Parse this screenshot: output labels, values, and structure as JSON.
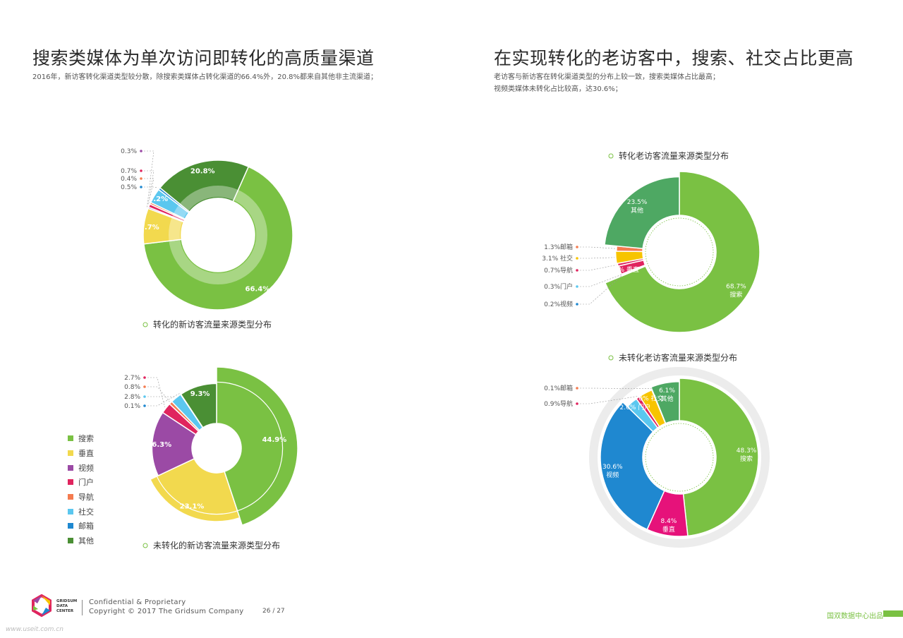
{
  "left": {
    "title": "搜索类媒体为单次访问即转化的高质量渠道",
    "subtitle": "2016年，新访客转化渠道类型较分散，除搜索类媒体占转化渠道的66.4%外，20.8%都来自其他非主流渠道；"
  },
  "right": {
    "title": "在实现转化的老访客中，搜索、社交占比更高",
    "subtitle_lines": [
      "老访客与新访客在转化渠道类型的分布上较一致，搜索类媒体占比最高；",
      "视频类媒体未转化占比较高，达30.6%；"
    ]
  },
  "legend": [
    {
      "label": "搜索",
      "color": "#7ac143"
    },
    {
      "label": "垂直",
      "color": "#f2d94e"
    },
    {
      "label": "视频",
      "color": "#9b4aa5"
    },
    {
      "label": "门户",
      "color": "#e0245e"
    },
    {
      "label": "导航",
      "color": "#f47b4f"
    },
    {
      "label": "社交",
      "color": "#5bc7ef"
    },
    {
      "label": "邮箱",
      "color": "#1f88d0"
    },
    {
      "label": "其他",
      "color": "#4a8f34"
    }
  ],
  "chart_data": [
    {
      "type": "pie",
      "title": "转化的新访客流量来源类型分布",
      "slices": [
        {
          "label": "搜索",
          "value": 66.4,
          "text": "66.4%",
          "color": "#7ac143"
        },
        {
          "label": "垂直",
          "value": 7.7,
          "text": "7.7%",
          "color": "#f2d94e"
        },
        {
          "label": "视频",
          "value": 0.3,
          "text": "0.3%",
          "color": "#9b4aa5"
        },
        {
          "label": "门户",
          "value": 0.7,
          "text": "0.7%",
          "color": "#e0245e"
        },
        {
          "label": "导航",
          "value": 0.4,
          "text": "0.4%",
          "color": "#f47b4f"
        },
        {
          "label": "社交",
          "value": 3.2,
          "text": "3.2%",
          "color": "#5bc7ef"
        },
        {
          "label": "邮箱",
          "value": 0.5,
          "text": "0.5%",
          "color": "#1f88d0"
        },
        {
          "label": "其他",
          "value": 20.8,
          "text": "20.8%",
          "color": "#4a8f34"
        }
      ]
    },
    {
      "type": "pie",
      "title": "未转化的新访客流量来源类型分布",
      "slices": [
        {
          "label": "搜索",
          "value": 44.9,
          "text": "44.9%",
          "color": "#7ac143"
        },
        {
          "label": "垂直",
          "value": 23.1,
          "text": "23.1%",
          "color": "#f2d94e"
        },
        {
          "label": "视频",
          "value": 16.3,
          "text": "16.3%",
          "color": "#9b4aa5"
        },
        {
          "label": "门户",
          "value": 2.7,
          "text": "2.7%",
          "color": "#e0245e"
        },
        {
          "label": "导航",
          "value": 0.8,
          "text": "0.8%",
          "color": "#f47b4f"
        },
        {
          "label": "社交",
          "value": 2.8,
          "text": "2.8%",
          "color": "#5bc7ef"
        },
        {
          "label": "邮箱",
          "value": 0.1,
          "text": "0.1%",
          "color": "#1f88d0"
        },
        {
          "label": "其他",
          "value": 9.3,
          "text": "9.3%",
          "color": "#4a8f34"
        }
      ]
    },
    {
      "type": "pie",
      "title": "转化老访客流量来源类型分布",
      "slices": [
        {
          "label": "搜索",
          "value": 68.7,
          "text": "68.7%",
          "color": "#7ac143"
        },
        {
          "label": "视频",
          "value": 0.2,
          "text": "0.2%视频",
          "color": "#1f88d0"
        },
        {
          "label": "门户",
          "value": 0.3,
          "text": "0.3%门户",
          "color": "#5bc7ef"
        },
        {
          "label": "垂直",
          "value": 2.2,
          "text": "2.2% 垂直",
          "color": "#e0245e"
        },
        {
          "label": "导航",
          "value": 0.7,
          "text": "0.7%导航",
          "color": "#e0245e"
        },
        {
          "label": "社交",
          "value": 3.1,
          "text": "3.1% 社交",
          "color": "#f7c400"
        },
        {
          "label": "邮箱",
          "value": 1.3,
          "text": "1.3%邮箱",
          "color": "#f47b4f"
        },
        {
          "label": "其他",
          "value": 23.5,
          "text": "23.5%",
          "color": "#4ea863"
        }
      ]
    },
    {
      "type": "pie",
      "title": "未转化老访客流量来源类型分布",
      "slices": [
        {
          "label": "搜索",
          "value": 48.3,
          "text": "48.3%",
          "color": "#7ac143"
        },
        {
          "label": "垂直",
          "value": 8.4,
          "text": "8.4%",
          "color": "#e6127a"
        },
        {
          "label": "视频",
          "value": 30.6,
          "text": "30.6%",
          "color": "#1f88d0"
        },
        {
          "label": "门户",
          "value": 2.6,
          "text": "2.6% 门户",
          "color": "#5bc7ef"
        },
        {
          "label": "导航",
          "value": 0.9,
          "text": "0.9%导航",
          "color": "#e0245e"
        },
        {
          "label": "社交",
          "value": 3.0,
          "text": "3.0% 社交",
          "color": "#f7c400"
        },
        {
          "label": "邮箱",
          "value": 0.1,
          "text": "0.1%邮箱",
          "color": "#f47b4f"
        },
        {
          "label": "其他",
          "value": 6.1,
          "text": "6.1%",
          "color": "#4ea863"
        }
      ]
    }
  ],
  "footer": {
    "logo_lines": [
      "GRIDSUM",
      "DATA",
      "CENTER"
    ],
    "line1": "Confidential & Proprietary",
    "line2": "Copyright © 2017 The Gridsum Company",
    "page": "26 / 27",
    "brand_note": "国双数据中心出品",
    "watermark": "www.useit.com.cn"
  }
}
